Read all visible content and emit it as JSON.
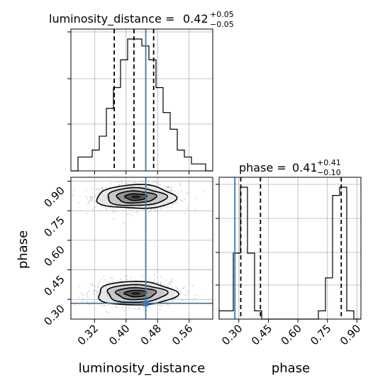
{
  "chart_data": {
    "type": "corner",
    "parameters": [
      "luminosity_distance",
      "phase"
    ],
    "truth": {
      "luminosity_distance": 0.45,
      "phase": 0.28
    },
    "panels": [
      {
        "id": "hist-luminosity-distance",
        "type": "histogram",
        "title": {
          "prefix": "luminosity_distance = ",
          "value": "0.42",
          "plus": "+0.05",
          "minus": "−0.05"
        },
        "xlim": [
          0.26,
          0.62
        ],
        "bin_edges": [
          0.26,
          0.278,
          0.296,
          0.314,
          0.332,
          0.35,
          0.368,
          0.386,
          0.404,
          0.422,
          0.44,
          0.458,
          0.476,
          0.494,
          0.512,
          0.53,
          0.548,
          0.566,
          0.584,
          0.602,
          0.62
        ],
        "counts": [
          0,
          0.1,
          0.1,
          0.15,
          0.25,
          0.45,
          0.6,
          0.8,
          0.95,
          0.95,
          0.9,
          0.8,
          0.6,
          0.42,
          0.3,
          0.15,
          0.1,
          0.05,
          0.05,
          0
        ],
        "quantiles": [
          0.37,
          0.42,
          0.47
        ]
      },
      {
        "id": "hist-phase",
        "type": "histogram",
        "title": {
          "prefix": "phase = ",
          "value": "0.41",
          "plus": "+0.41",
          "minus": "−0.10"
        },
        "xlim": [
          0.2,
          0.92
        ],
        "bin_edges": [
          0.2,
          0.236,
          0.272,
          0.308,
          0.344,
          0.38,
          0.416,
          0.452,
          0.488,
          0.524,
          0.56,
          0.596,
          0.632,
          0.668,
          0.704,
          0.74,
          0.776,
          0.812,
          0.848,
          0.884,
          0.92
        ],
        "counts": [
          0.05,
          0.05,
          0.4,
          0.8,
          0.4,
          0.05,
          0.0,
          0.0,
          0.0,
          0.0,
          0.0,
          0.0,
          0.0,
          0.0,
          0.05,
          0.25,
          0.75,
          0.8,
          0.05,
          0.0
        ],
        "quantiles": [
          0.31,
          0.41,
          0.82
        ]
      },
      {
        "id": "scatter-2d",
        "type": "2d-density",
        "xlim": [
          0.26,
          0.62
        ],
        "ylim": [
          0.2,
          0.92
        ],
        "modes": [
          {
            "x": 0.425,
            "y": 0.82,
            "sx": 0.05,
            "sy": 0.03
          },
          {
            "x": 0.425,
            "y": 0.33,
            "sx": 0.05,
            "sy": 0.03
          }
        ]
      }
    ],
    "axes": {
      "x_luminosity_distance": {
        "label": "luminosity_distance",
        "ticks": [
          0.32,
          0.4,
          0.48,
          0.56
        ],
        "tick_labels": [
          "0.32",
          "0.40",
          "0.48",
          "0.56"
        ]
      },
      "y_phase": {
        "label": "phase",
        "ticks": [
          0.3,
          0.45,
          0.6,
          0.75,
          0.9
        ],
        "tick_labels": [
          "0.30",
          "0.45",
          "0.60",
          "0.75",
          "0.90"
        ]
      },
      "x_phase": {
        "label": "phase",
        "ticks": [
          0.3,
          0.45,
          0.6,
          0.75,
          0.9
        ],
        "tick_labels": [
          "0.30",
          "0.45",
          "0.60",
          "0.75",
          "0.90"
        ]
      }
    },
    "grid": true,
    "colors": {
      "truth": "#3b78b5",
      "hist": "#000000",
      "quantile": "#000000",
      "points": "#8c8c8c"
    }
  }
}
